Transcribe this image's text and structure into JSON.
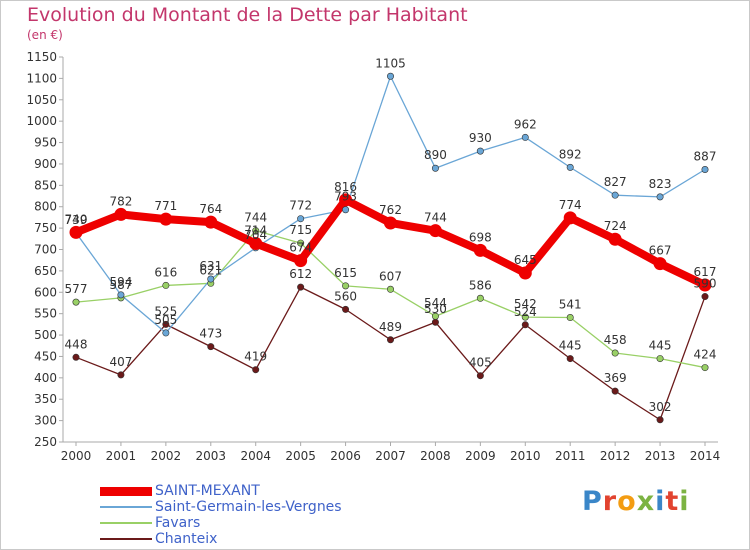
{
  "header": {
    "title": "Evolution du Montant de la Dette par Habitant",
    "unit": "(en €)"
  },
  "brand": {
    "letters": [
      "P",
      "r",
      "o",
      "x",
      "i",
      "t",
      "i"
    ],
    "colors": [
      "#3a86c8",
      "#e2432f",
      "#f39c12",
      "#7cb342",
      "#3a86c8",
      "#e2432f",
      "#7cb342"
    ]
  },
  "chart_data": {
    "type": "line",
    "title": "Evolution du Montant de la Dette par Habitant",
    "ylabel": "(en €)",
    "xlabel": "",
    "x": [
      "2000",
      "2001",
      "2002",
      "2003",
      "2004",
      "2005",
      "2006",
      "2007",
      "2008",
      "2009",
      "2010",
      "2011",
      "2012",
      "2013",
      "2014"
    ],
    "ylim": [
      250,
      1150
    ],
    "ytick_step": 50,
    "grid": false,
    "legend_position": "bottom-left",
    "series": [
      {
        "name": "SAINT-MEXANT",
        "color": "#ee0000",
        "values": [
          740,
          782,
          771,
          764,
          714,
          674,
          816,
          762,
          744,
          698,
          645,
          774,
          724,
          667,
          617
        ]
      },
      {
        "name": "Saint-Germain-les-Vergnes",
        "color": "#6aa6d6",
        "values": [
          739,
          594,
          505,
          631,
          704,
          772,
          793,
          1105,
          890,
          930,
          962,
          892,
          827,
          823,
          887
        ]
      },
      {
        "name": "Favars",
        "color": "#99d066",
        "values": [
          577,
          587,
          616,
          621,
          744,
          715,
          615,
          607,
          544,
          586,
          542,
          541,
          458,
          445,
          424
        ]
      },
      {
        "name": "Chanteix",
        "color": "#6b1a1a",
        "values": [
          448,
          407,
          525,
          473,
          419,
          612,
          560,
          489,
          530,
          405,
          524,
          445,
          369,
          302,
          590
        ]
      }
    ]
  }
}
